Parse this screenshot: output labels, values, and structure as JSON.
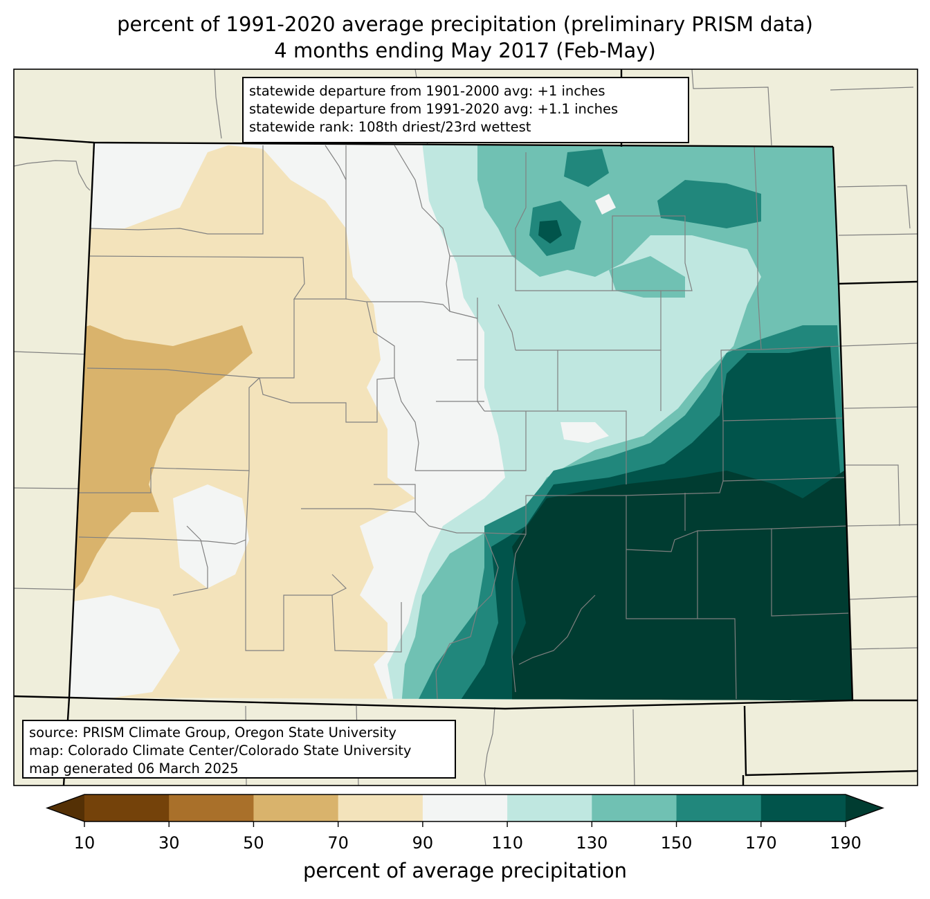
{
  "title": {
    "line1": "percent of 1991-2020 average precipitation (preliminary PRISM data)",
    "line2": "4 months ending May 2017 (Feb-May)"
  },
  "stats": {
    "line1": "statewide departure from 1901-2000 avg: +1 inches",
    "line2": "statewide departure from 1991-2020 avg: +1.1 inches",
    "line3": "statewide rank: 108th driest/23rd wettest"
  },
  "source": {
    "line1": "source: PRISM Climate Group, Oregon State University",
    "line2": "map: Colorado Climate Center/Colorado State University",
    "line3": "map generated 06 March 2025"
  },
  "colorbar": {
    "label": "percent of average precipitation",
    "ticks": [
      "10",
      "30",
      "50",
      "70",
      "90",
      "110",
      "130",
      "150",
      "170",
      "190"
    ],
    "colors": {
      "under": "#543005",
      "bins": [
        "#74420a",
        "#a9702a",
        "#d9b36c",
        "#f3e3bb",
        "#f3f5f4",
        "#bfe7e0",
        "#70c1b3",
        "#21877c",
        "#01544b"
      ],
      "over": "#003c31"
    }
  },
  "colors": {
    "background_land": "#efeedb",
    "county_lines": "#808080",
    "state_lines": "#000000"
  }
}
